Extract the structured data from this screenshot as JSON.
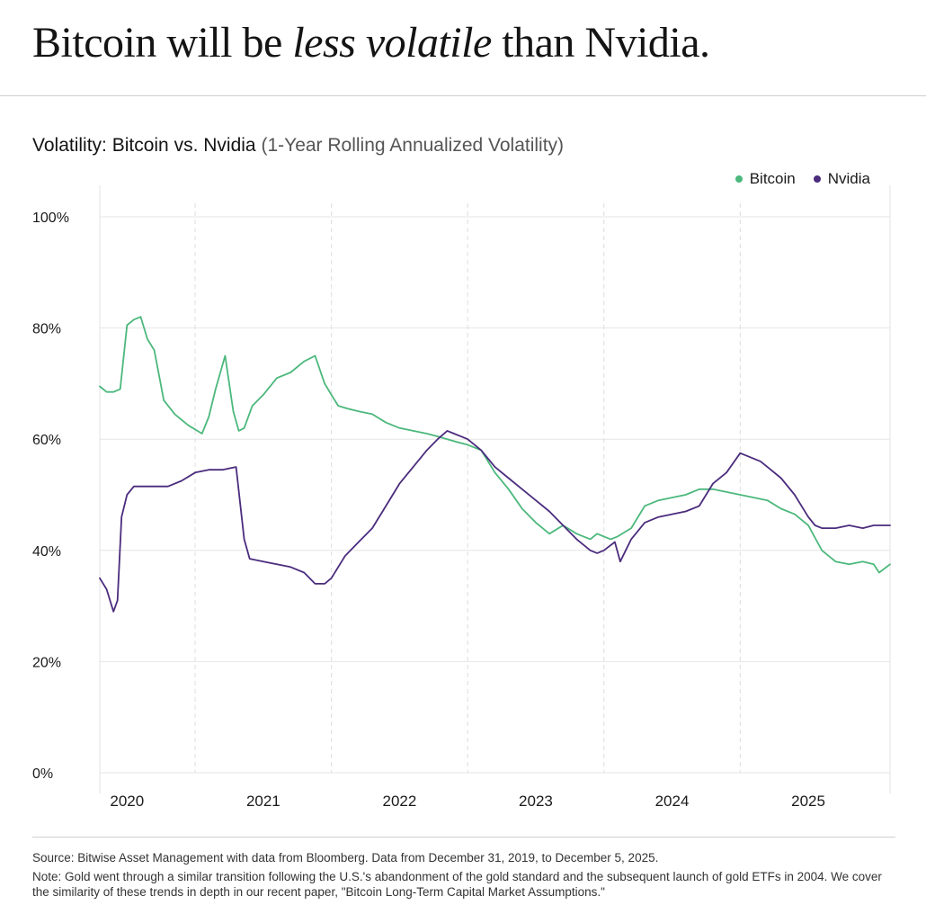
{
  "headline": {
    "part1": "Bitcoin will be ",
    "emphasis": "less volatile",
    "part2": " than Nvidia."
  },
  "chart_data": {
    "type": "line",
    "title": "Volatility: Bitcoin vs. Nvidia",
    "subtitle": "(1-Year Rolling Annualized Volatility)",
    "xlabel": "",
    "ylabel": "",
    "xlim": [
      2019.8,
      2025.6
    ],
    "ylim": [
      0,
      100
    ],
    "y_ticks": [
      "0%",
      "20%",
      "40%",
      "60%",
      "80%",
      "100%"
    ],
    "y_tick_values": [
      0,
      20,
      40,
      60,
      80,
      100
    ],
    "x_ticks": [
      "2020",
      "2021",
      "2022",
      "2023",
      "2024",
      "2025"
    ],
    "x_tick_values": [
      2020.0,
      2021.0,
      2022.0,
      2023.0,
      2024.0,
      2025.0
    ],
    "grid": true,
    "legend_position": "top-right",
    "series": [
      {
        "name": "Bitcoin",
        "color": "#4cb87c",
        "x": [
          2019.8,
          2019.85,
          2019.9,
          2019.95,
          2020.0,
          2020.05,
          2020.1,
          2020.15,
          2020.2,
          2020.27,
          2020.35,
          2020.45,
          2020.55,
          2020.6,
          2020.65,
          2020.72,
          2020.78,
          2020.82,
          2020.86,
          2020.92,
          2021.0,
          2021.1,
          2021.2,
          2021.3,
          2021.38,
          2021.45,
          2021.5,
          2021.55,
          2021.62,
          2021.7,
          2021.8,
          2021.9,
          2022.0,
          2022.1,
          2022.2,
          2022.28,
          2022.35,
          2022.42,
          2022.5,
          2022.6,
          2022.7,
          2022.8,
          2022.9,
          2023.0,
          2023.1,
          2023.2,
          2023.3,
          2023.4,
          2023.45,
          2023.5,
          2023.55,
          2023.6,
          2023.7,
          2023.8,
          2023.9,
          2024.0,
          2024.1,
          2024.2,
          2024.3,
          2024.4,
          2024.5,
          2024.6,
          2024.7,
          2024.8,
          2024.9,
          2025.0,
          2025.1,
          2025.2,
          2025.3,
          2025.4,
          2025.48,
          2025.52,
          2025.6
        ],
        "values": [
          69.5,
          68.5,
          68.5,
          69,
          80.5,
          81.5,
          82,
          78,
          76,
          67,
          64.5,
          62.5,
          61,
          64,
          69,
          75,
          65,
          61.5,
          62,
          66,
          68,
          71,
          72,
          74,
          75,
          70,
          68,
          66,
          65.5,
          65,
          64.5,
          63,
          62,
          61.5,
          61,
          60.5,
          60,
          59.5,
          59,
          58,
          54,
          51,
          47.5,
          45,
          43,
          44.5,
          43,
          42,
          43,
          42.5,
          42,
          42.5,
          44,
          48,
          49,
          49.5,
          50,
          51,
          51,
          50.5,
          50,
          49.5,
          49,
          47.5,
          46.5,
          44.5,
          40,
          38,
          37.5,
          38,
          37.5,
          36,
          37.5
        ]
      },
      {
        "name": "Nvidia",
        "color": "#4b2c7d",
        "x": [
          2019.8,
          2019.85,
          2019.9,
          2019.93,
          2019.96,
          2020.0,
          2020.05,
          2020.1,
          2020.2,
          2020.3,
          2020.4,
          2020.5,
          2020.6,
          2020.7,
          2020.8,
          2020.86,
          2020.9,
          2021.0,
          2021.1,
          2021.2,
          2021.3,
          2021.38,
          2021.45,
          2021.5,
          2021.6,
          2021.7,
          2021.8,
          2021.9,
          2022.0,
          2022.1,
          2022.2,
          2022.28,
          2022.35,
          2022.4,
          2022.45,
          2022.5,
          2022.6,
          2022.7,
          2022.8,
          2022.9,
          2023.0,
          2023.1,
          2023.2,
          2023.3,
          2023.4,
          2023.45,
          2023.5,
          2023.58,
          2023.62,
          2023.66,
          2023.7,
          2023.8,
          2023.9,
          2024.0,
          2024.1,
          2024.2,
          2024.3,
          2024.4,
          2024.5,
          2024.6,
          2024.65,
          2024.7,
          2024.8,
          2024.9,
          2025.0,
          2025.05,
          2025.1,
          2025.2,
          2025.3,
          2025.4,
          2025.48,
          2025.52,
          2025.6
        ],
        "values": [
          35,
          33,
          29,
          31,
          46,
          50,
          51.5,
          51.5,
          51.5,
          51.5,
          52.5,
          54,
          54.5,
          54.5,
          55,
          42,
          38.5,
          38,
          37.5,
          37,
          36,
          34,
          34,
          35,
          39,
          41.5,
          44,
          48,
          52,
          55,
          58,
          60,
          61.5,
          61,
          60.5,
          60,
          58,
          55,
          53,
          51,
          49,
          47,
          44.5,
          42,
          40,
          39.5,
          40,
          41.5,
          38,
          40,
          42,
          45,
          46,
          46.5,
          47,
          48,
          52,
          54,
          57.5,
          56.5,
          56,
          55,
          53,
          50,
          46,
          44.5,
          44,
          44,
          44.5,
          44,
          44.5,
          44.5,
          44.5
        ]
      }
    ]
  },
  "footer": {
    "source": "Source: Bitwise Asset Management with data from Bloomberg. Data from December 31, 2019, to December 5, 2025.",
    "note": "Note: Gold went through a similar transition following the U.S.'s abandonment of the gold standard and the subsequent launch of gold ETFs in 2004. We cover the similarity of these trends in depth in our recent paper, \"Bitcoin Long-Term Capital Market Assumptions.\""
  }
}
